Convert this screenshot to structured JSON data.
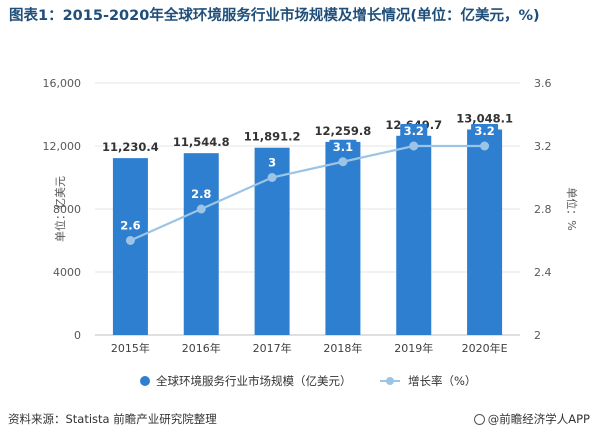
{
  "chart_data": {
    "type": "bar",
    "title": "图表1：2015-2020年全球环境服务行业市场规模及增长情况(单位：亿美元，%)",
    "categories": [
      "2015年",
      "2016年",
      "2017年",
      "2018年",
      "2019年",
      "2020年E"
    ],
    "series": [
      {
        "name": "全球环境服务行业市场规模（亿美元）",
        "type": "bar",
        "axis": "left",
        "values": [
          11230.4,
          11544.8,
          11891.2,
          12259.8,
          12649.7,
          13048.1
        ],
        "labels": [
          "11,230.4",
          "11,544.8",
          "11,891.2",
          "12,259.8",
          "12,649.7",
          "13,048.1"
        ]
      },
      {
        "name": "增长率（%）",
        "type": "line",
        "axis": "right",
        "values": [
          2.6,
          2.8,
          3,
          3.1,
          3.2,
          3.2
        ],
        "labels": [
          "2.6",
          "2.8",
          "3",
          "3.1",
          "3.2",
          "3.2"
        ]
      }
    ],
    "ylabel": "单位：亿美元",
    "y2label": "单位：%",
    "ylim": [
      0,
      16000
    ],
    "y2lim": [
      2,
      3.6
    ],
    "yticks": [
      "0",
      "4000",
      "8000",
      "12,000",
      "16,000"
    ],
    "y2ticks": [
      "2",
      "2.4",
      "2.8",
      "3.2",
      "3.6"
    ],
    "legend_position": "bottom",
    "grid": true,
    "colors": {
      "bar": "#2e7fd0",
      "line": "#9cc4e6",
      "grid": "#e6e6e6",
      "title": "#1f4e79"
    }
  },
  "footer": {
    "source": "资料来源：Statista 前瞻产业研究院整理",
    "brand": "@前瞻经济学人APP"
  }
}
